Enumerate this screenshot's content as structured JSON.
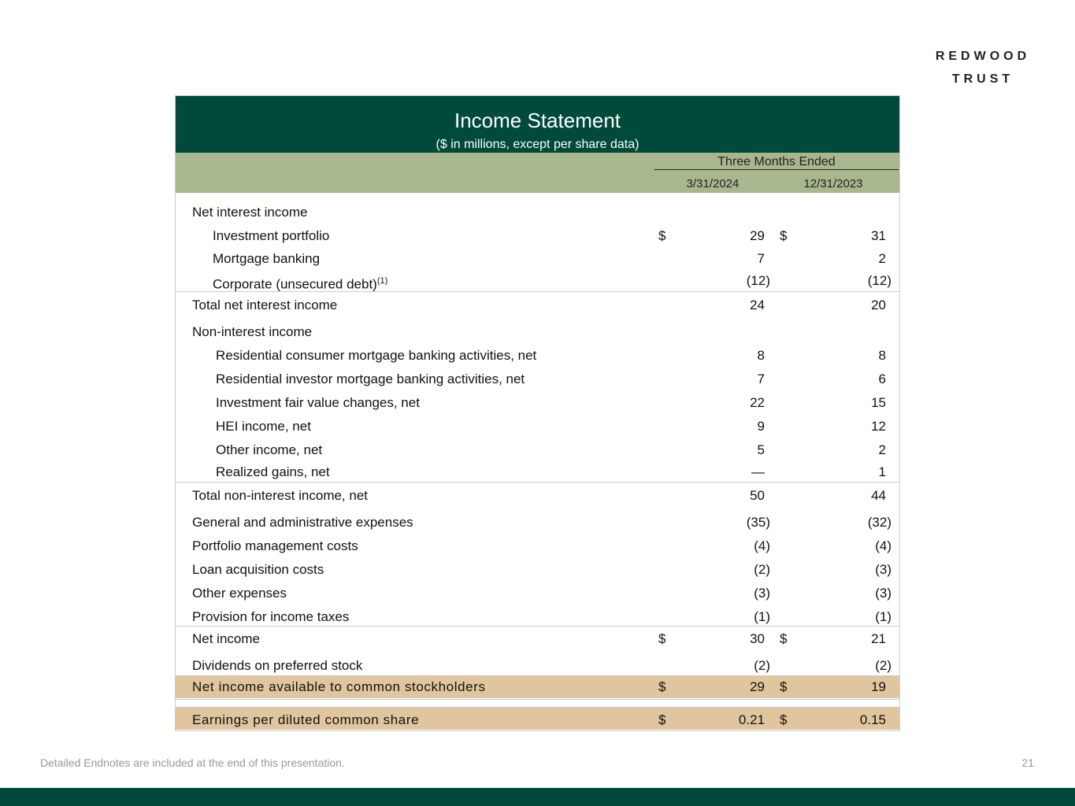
{
  "logo": {
    "line1": "REDWOOD",
    "line2": "TRUST"
  },
  "table": {
    "title": "Income Statement",
    "subtitle": "($ in millions, except per share data)",
    "period_header": "Three Months Ended",
    "columns": [
      "3/31/2024",
      "12/31/2023"
    ],
    "rows": [
      {
        "label": "Net interest income"
      },
      {
        "label": "Investment portfolio",
        "dollars": [
          "$",
          "$"
        ],
        "values": [
          "29",
          "31"
        ]
      },
      {
        "label": "Mortgage banking",
        "values": [
          "7",
          "2"
        ]
      },
      {
        "label": "Corporate (unsecured debt)",
        "note_ref": "(1)",
        "values": [
          "(12)",
          "(12)"
        ]
      },
      {
        "label": "Total net interest income",
        "values": [
          "24",
          "20"
        ]
      },
      {
        "label": "Non-interest income"
      },
      {
        "label": "Residential consumer mortgage banking activities, net",
        "values": [
          "8",
          "8"
        ]
      },
      {
        "label": "Residential investor mortgage banking activities, net",
        "values": [
          "7",
          "6"
        ]
      },
      {
        "label": "Investment fair value changes, net",
        "values": [
          "22",
          "15"
        ]
      },
      {
        "label": "HEI income, net",
        "values": [
          "9",
          "12"
        ]
      },
      {
        "label": "Other income, net",
        "values": [
          "5",
          "2"
        ]
      },
      {
        "label": "Realized gains, net",
        "values": [
          "—",
          "1"
        ]
      },
      {
        "label": "Total non-interest income, net",
        "values": [
          "50",
          "44"
        ]
      },
      {
        "label": "General and administrative expenses",
        "values": [
          "(35)",
          "(32)"
        ]
      },
      {
        "label": "Portfolio management costs",
        "values": [
          "(4)",
          "(4)"
        ]
      },
      {
        "label": "Loan acquisition costs",
        "values": [
          "(2)",
          "(3)"
        ]
      },
      {
        "label": "Other expenses",
        "values": [
          "(3)",
          "(3)"
        ]
      },
      {
        "label": "Provision for income taxes",
        "values": [
          "(1)",
          "(1)"
        ]
      },
      {
        "label": "Net income",
        "dollars": [
          "$",
          "$"
        ],
        "values": [
          "30",
          "21"
        ]
      },
      {
        "label": "Dividends on preferred stock",
        "values": [
          "(2)",
          "(2)"
        ]
      },
      {
        "label": "Net income available to common stockholders",
        "dollars": [
          "$",
          "$"
        ],
        "values": [
          "29",
          "19"
        ]
      },
      {
        "label": "Earnings per diluted common share",
        "dollars": [
          "$",
          "$"
        ],
        "values": [
          "0.21",
          "0.15"
        ]
      }
    ]
  },
  "footer": {
    "note": "Detailed Endnotes are included at the end of this presentation.",
    "page": "21"
  }
}
